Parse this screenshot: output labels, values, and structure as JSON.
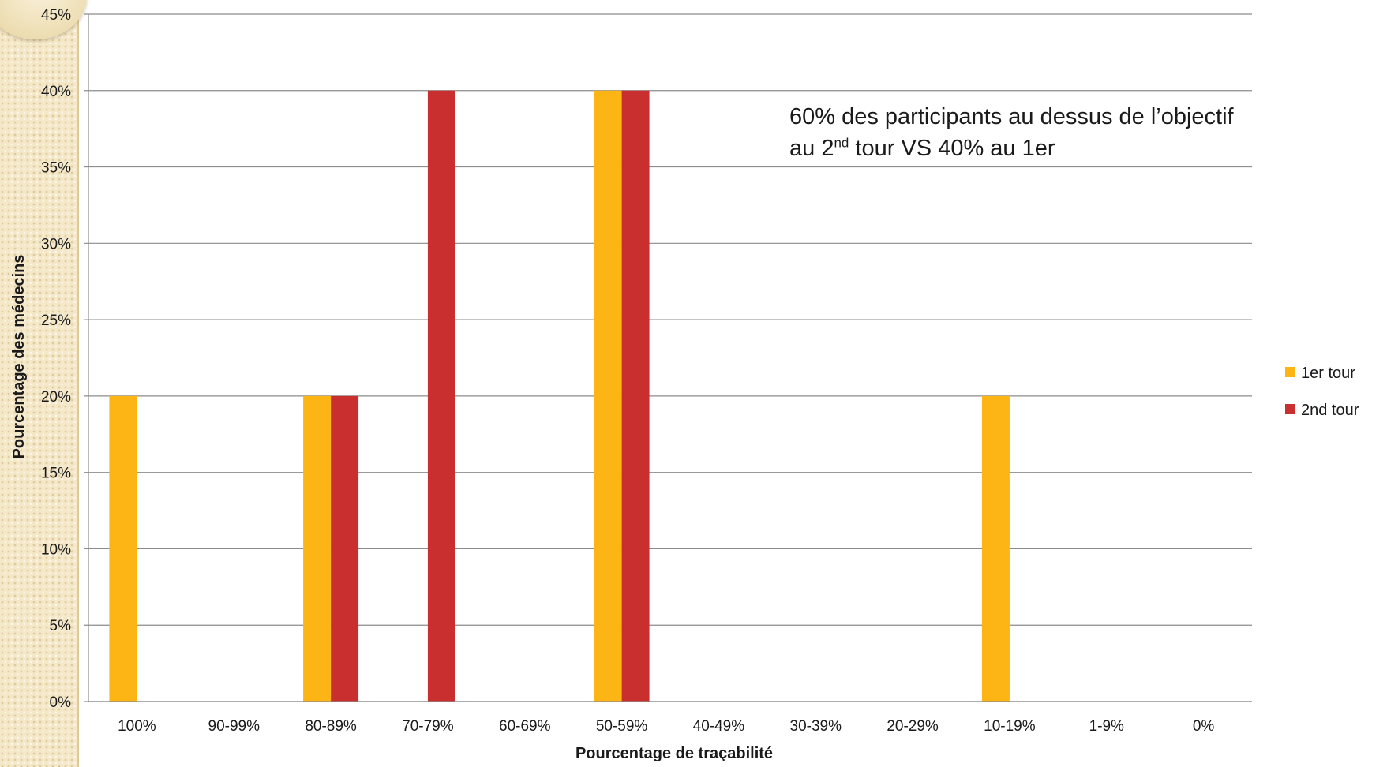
{
  "chart_data": {
    "type": "bar",
    "categories": [
      "100%",
      "90-99%",
      "80-89%",
      "70-79%",
      "60-69%",
      "50-59%",
      "40-49%",
      "30-39%",
      "20-29%",
      "10-19%",
      "1-9%",
      "0%"
    ],
    "series": [
      {
        "name": "1er tour",
        "color": "#fdb515",
        "values": [
          20,
          0,
          20,
          0,
          0,
          40,
          0,
          0,
          0,
          20,
          0,
          0
        ]
      },
      {
        "name": "2nd tour",
        "color": "#c92f2f",
        "values": [
          0,
          0,
          20,
          40,
          0,
          40,
          0,
          0,
          0,
          0,
          0,
          0
        ]
      }
    ],
    "xlabel": "Pourcentage de traçabilité",
    "ylabel": "Pourcentage des médecins",
    "ylim": [
      0,
      45
    ],
    "yticks": [
      "0%",
      "5%",
      "10%",
      "15%",
      "20%",
      "25%",
      "30%",
      "35%",
      "40%",
      "45%"
    ],
    "grid": true,
    "legend": "right",
    "annotation": {
      "line1": "60% des participants au dessus de l’objectif",
      "line2_prefix": "au 2",
      "line2_sup": "nd",
      "line2_suffix": " tour VS 40% au 1er"
    }
  }
}
